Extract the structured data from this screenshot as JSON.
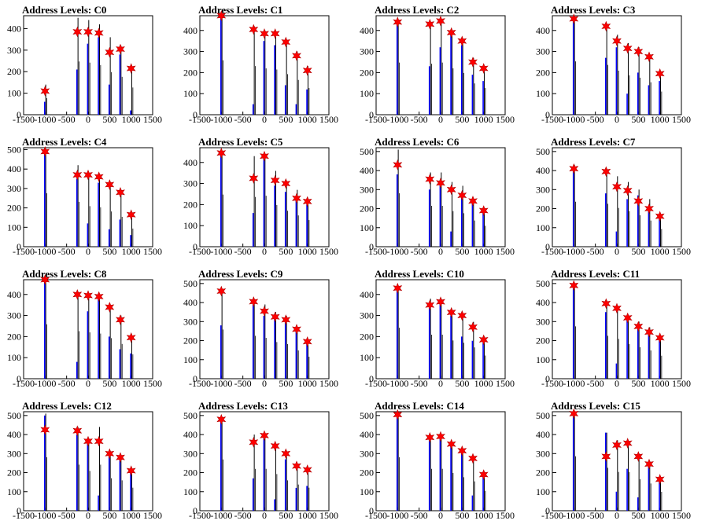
{
  "colors": {
    "histogram": "#0000ff",
    "overlay": "#000000",
    "marker_fill": "#ff0000",
    "marker_stroke": "#b00000"
  },
  "chart_data": [
    {
      "type": "bar",
      "title": "Address Levels: C0",
      "xlim": [
        -1500,
        1500
      ],
      "ylim": [
        0,
        460
      ],
      "xticks": [
        -1500,
        -1000,
        -500,
        0,
        500,
        1000,
        1500
      ],
      "yticks": [
        0,
        100,
        200,
        300,
        400
      ],
      "levels": [
        -1000,
        -250,
        0,
        250,
        500,
        750,
        1000
      ],
      "black_peaks": [
        140,
        450,
        440,
        420,
        360,
        320,
        230
      ],
      "blue_peaks": [
        60,
        210,
        330,
        360,
        140,
        280,
        20
      ],
      "markers": [
        {
          "x": -1000,
          "y": 110
        },
        {
          "x": -250,
          "y": 385
        },
        {
          "x": 0,
          "y": 385
        },
        {
          "x": 250,
          "y": 380
        },
        {
          "x": 500,
          "y": 290
        },
        {
          "x": 750,
          "y": 305
        },
        {
          "x": 1000,
          "y": 215
        }
      ]
    },
    {
      "type": "bar",
      "title": "Address Levels: C1",
      "xlim": [
        -1500,
        1500
      ],
      "ylim": [
        0,
        470
      ],
      "xticks": [
        -1500,
        -1000,
        -500,
        0,
        500,
        1000,
        1500
      ],
      "yticks": [
        0,
        100,
        200,
        300,
        400
      ],
      "levels": [
        -1000,
        -250,
        0,
        250,
        500,
        750,
        1000
      ],
      "black_peaks": [
        470,
        420,
        400,
        390,
        350,
        300,
        230
      ],
      "blue_peaks": [
        460,
        50,
        350,
        330,
        140,
        50,
        120
      ],
      "markers": [
        {
          "x": -1000,
          "y": 470
        },
        {
          "x": -250,
          "y": 405
        },
        {
          "x": 0,
          "y": 385
        },
        {
          "x": 250,
          "y": 385
        },
        {
          "x": 500,
          "y": 345
        },
        {
          "x": 750,
          "y": 280
        },
        {
          "x": 1000,
          "y": 210
        }
      ]
    },
    {
      "type": "bar",
      "title": "Address Levels: C2",
      "xlim": [
        -1500,
        1500
      ],
      "ylim": [
        0,
        470
      ],
      "xticks": [
        -1500,
        -1000,
        -500,
        0,
        500,
        1000,
        1500
      ],
      "yticks": [
        0,
        100,
        200,
        300,
        400
      ],
      "levels": [
        -1000,
        -250,
        0,
        250,
        500,
        750,
        1000
      ],
      "black_peaks": [
        450,
        440,
        450,
        400,
        360,
        270,
        230
      ],
      "blue_peaks": [
        440,
        230,
        320,
        380,
        330,
        190,
        160
      ],
      "markers": [
        {
          "x": -1000,
          "y": 440
        },
        {
          "x": -250,
          "y": 430
        },
        {
          "x": 0,
          "y": 445
        },
        {
          "x": 250,
          "y": 390
        },
        {
          "x": 500,
          "y": 350
        },
        {
          "x": 750,
          "y": 250
        },
        {
          "x": 1000,
          "y": 220
        }
      ]
    },
    {
      "type": "bar",
      "title": "Address Levels: C3",
      "xlim": [
        -1500,
        1500
      ],
      "ylim": [
        0,
        470
      ],
      "xticks": [
        -1500,
        -1000,
        -500,
        0,
        500,
        1000,
        1500
      ],
      "yticks": [
        0,
        100,
        200,
        300,
        400
      ],
      "levels": [
        -1000,
        -250,
        0,
        250,
        500,
        750,
        1000
      ],
      "black_peaks": [
        460,
        430,
        380,
        340,
        320,
        280,
        200
      ],
      "blue_peaks": [
        450,
        270,
        320,
        100,
        200,
        140,
        160
      ],
      "markers": [
        {
          "x": -1000,
          "y": 455
        },
        {
          "x": -250,
          "y": 420
        },
        {
          "x": 0,
          "y": 350
        },
        {
          "x": 250,
          "y": 315
        },
        {
          "x": 500,
          "y": 300
        },
        {
          "x": 750,
          "y": 275
        },
        {
          "x": 1000,
          "y": 195
        }
      ]
    },
    {
      "type": "bar",
      "title": "Address Levels: C4",
      "xlim": [
        -1500,
        1500
      ],
      "ylim": [
        0,
        510
      ],
      "xticks": [
        -1500,
        -1000,
        -500,
        0,
        500,
        1000,
        1500
      ],
      "yticks": [
        0,
        100,
        200,
        300,
        400,
        500
      ],
      "levels": [
        -1000,
        -250,
        0,
        250,
        500,
        750,
        1000
      ],
      "black_peaks": [
        500,
        420,
        380,
        370,
        330,
        280,
        170
      ],
      "blue_peaks": [
        490,
        350,
        120,
        330,
        90,
        140,
        60
      ],
      "markers": [
        {
          "x": -1000,
          "y": 490
        },
        {
          "x": -250,
          "y": 370
        },
        {
          "x": 0,
          "y": 370
        },
        {
          "x": 250,
          "y": 360
        },
        {
          "x": 500,
          "y": 320
        },
        {
          "x": 750,
          "y": 280
        },
        {
          "x": 1000,
          "y": 165
        }
      ]
    },
    {
      "type": "bar",
      "title": "Address Levels: C5",
      "xlim": [
        -1500,
        1500
      ],
      "ylim": [
        0,
        470
      ],
      "xticks": [
        -1500,
        -1000,
        -500,
        0,
        500,
        1000,
        1500
      ],
      "yticks": [
        0,
        100,
        200,
        300,
        400
      ],
      "levels": [
        -1000,
        -250,
        0,
        250,
        500,
        750,
        1000
      ],
      "black_peaks": [
        450,
        430,
        440,
        360,
        310,
        270,
        230
      ],
      "blue_peaks": [
        440,
        160,
        420,
        290,
        260,
        220,
        200
      ],
      "markers": [
        {
          "x": -1000,
          "y": 445
        },
        {
          "x": -250,
          "y": 325
        },
        {
          "x": 0,
          "y": 430
        },
        {
          "x": 250,
          "y": 315
        },
        {
          "x": 500,
          "y": 300
        },
        {
          "x": 750,
          "y": 230
        },
        {
          "x": 1000,
          "y": 215
        }
      ]
    },
    {
      "type": "bar",
      "title": "Address Levels: C6",
      "xlim": [
        -1500,
        1500
      ],
      "ylim": [
        0,
        520
      ],
      "xticks": [
        -1500,
        -1000,
        -500,
        0,
        500,
        1000,
        1500
      ],
      "yticks": [
        0,
        100,
        200,
        300,
        400,
        500
      ],
      "levels": [
        -1000,
        -250,
        0,
        250,
        500,
        750,
        1000
      ],
      "black_peaks": [
        510,
        390,
        390,
        340,
        320,
        250,
        200
      ],
      "blue_peaks": [
        380,
        300,
        320,
        80,
        270,
        230,
        180
      ],
      "markers": [
        {
          "x": -1000,
          "y": 430
        },
        {
          "x": -250,
          "y": 355
        },
        {
          "x": 0,
          "y": 335
        },
        {
          "x": 250,
          "y": 300
        },
        {
          "x": 500,
          "y": 270
        },
        {
          "x": 750,
          "y": 240
        },
        {
          "x": 1000,
          "y": 190
        }
      ]
    },
    {
      "type": "bar",
      "title": "Address Levels: C7",
      "xlim": [
        -1500,
        1500
      ],
      "ylim": [
        0,
        520
      ],
      "xticks": [
        -1500,
        -1000,
        -500,
        0,
        500,
        1000,
        1500
      ],
      "yticks": [
        0,
        100,
        200,
        300,
        400,
        500
      ],
      "levels": [
        -1000,
        -250,
        0,
        250,
        500,
        750,
        1000
      ],
      "black_peaks": [
        430,
        410,
        370,
        340,
        300,
        250,
        170
      ],
      "blue_peaks": [
        420,
        280,
        80,
        250,
        270,
        190,
        160
      ],
      "markers": [
        {
          "x": -1000,
          "y": 410
        },
        {
          "x": -250,
          "y": 395
        },
        {
          "x": 0,
          "y": 315
        },
        {
          "x": 250,
          "y": 295
        },
        {
          "x": 500,
          "y": 240
        },
        {
          "x": 750,
          "y": 200
        },
        {
          "x": 1000,
          "y": 160
        }
      ]
    },
    {
      "type": "bar",
      "title": "Address Levels: C8",
      "xlim": [
        -1500,
        1500
      ],
      "ylim": [
        0,
        470
      ],
      "xticks": [
        -1500,
        -1000,
        -500,
        0,
        500,
        1000,
        1500
      ],
      "yticks": [
        0,
        100,
        200,
        300,
        400
      ],
      "levels": [
        -1000,
        -250,
        0,
        250,
        500,
        750,
        1000
      ],
      "black_peaks": [
        470,
        410,
        400,
        390,
        350,
        300,
        210
      ],
      "blue_peaks": [
        460,
        80,
        320,
        380,
        200,
        140,
        120
      ],
      "markers": [
        {
          "x": -1000,
          "y": 470
        },
        {
          "x": -250,
          "y": 400
        },
        {
          "x": 0,
          "y": 395
        },
        {
          "x": 250,
          "y": 390
        },
        {
          "x": 500,
          "y": 340
        },
        {
          "x": 750,
          "y": 280
        },
        {
          "x": 1000,
          "y": 195
        }
      ]
    },
    {
      "type": "bar",
      "title": "Address Levels: C9",
      "xlim": [
        -1500,
        1500
      ],
      "ylim": [
        0,
        520
      ],
      "xticks": [
        -1500,
        -1000,
        -500,
        0,
        500,
        1000,
        1500
      ],
      "yticks": [
        0,
        100,
        200,
        300,
        400,
        500
      ],
      "levels": [
        -1000,
        -250,
        0,
        250,
        500,
        750,
        1000
      ],
      "black_peaks": [
        470,
        410,
        390,
        350,
        330,
        270,
        210
      ],
      "blue_peaks": [
        280,
        390,
        330,
        330,
        300,
        250,
        200
      ],
      "markers": [
        {
          "x": -1000,
          "y": 460
        },
        {
          "x": -250,
          "y": 405
        },
        {
          "x": 0,
          "y": 355
        },
        {
          "x": 250,
          "y": 325
        },
        {
          "x": 500,
          "y": 310
        },
        {
          "x": 750,
          "y": 260
        },
        {
          "x": 1000,
          "y": 195
        }
      ]
    },
    {
      "type": "bar",
      "title": "Address Levels: C10",
      "xlim": [
        -1500,
        1500
      ],
      "ylim": [
        0,
        470
      ],
      "xticks": [
        -1500,
        -1000,
        -500,
        0,
        500,
        1000,
        1500
      ],
      "yticks": [
        0,
        100,
        200,
        300,
        400
      ],
      "levels": [
        -1000,
        -250,
        0,
        250,
        500,
        750,
        1000
      ],
      "black_peaks": [
        440,
        380,
        380,
        330,
        310,
        270,
        200
      ],
      "blue_peaks": [
        430,
        340,
        360,
        300,
        200,
        180,
        170
      ],
      "markers": [
        {
          "x": -1000,
          "y": 430
        },
        {
          "x": -250,
          "y": 350
        },
        {
          "x": 0,
          "y": 365
        },
        {
          "x": 250,
          "y": 315
        },
        {
          "x": 500,
          "y": 300
        },
        {
          "x": 750,
          "y": 245
        },
        {
          "x": 1000,
          "y": 185
        }
      ]
    },
    {
      "type": "bar",
      "title": "Address Levels: C11",
      "xlim": [
        -1500,
        1500
      ],
      "ylim": [
        0,
        520
      ],
      "xticks": [
        -1500,
        -1000,
        -500,
        0,
        500,
        1000,
        1500
      ],
      "yticks": [
        0,
        100,
        200,
        300,
        400,
        500
      ],
      "levels": [
        -1000,
        -250,
        0,
        250,
        500,
        750,
        1000
      ],
      "black_peaks": [
        500,
        410,
        380,
        330,
        300,
        270,
        220
      ],
      "blue_peaks": [
        490,
        350,
        80,
        320,
        280,
        240,
        210
      ],
      "markers": [
        {
          "x": -1000,
          "y": 490
        },
        {
          "x": -250,
          "y": 395
        },
        {
          "x": 0,
          "y": 370
        },
        {
          "x": 250,
          "y": 320
        },
        {
          "x": 500,
          "y": 275
        },
        {
          "x": 750,
          "y": 245
        },
        {
          "x": 1000,
          "y": 215
        }
      ]
    },
    {
      "type": "bar",
      "title": "Address Levels: C12",
      "xlim": [
        -1500,
        1500
      ],
      "ylim": [
        0,
        520
      ],
      "xticks": [
        -1500,
        -1000,
        -500,
        0,
        500,
        1000,
        1500
      ],
      "yticks": [
        0,
        100,
        200,
        300,
        400,
        500
      ],
      "levels": [
        -1000,
        -250,
        0,
        250,
        500,
        750,
        1000
      ],
      "black_peaks": [
        510,
        440,
        380,
        440,
        310,
        290,
        220
      ],
      "blue_peaks": [
        500,
        400,
        360,
        80,
        290,
        270,
        200
      ],
      "markers": [
        {
          "x": -1000,
          "y": 425
        },
        {
          "x": -250,
          "y": 420
        },
        {
          "x": 0,
          "y": 365
        },
        {
          "x": 250,
          "y": 365
        },
        {
          "x": 500,
          "y": 300
        },
        {
          "x": 750,
          "y": 280
        },
        {
          "x": 1000,
          "y": 210
        }
      ]
    },
    {
      "type": "bar",
      "title": "Address Levels: C13",
      "xlim": [
        -1500,
        1500
      ],
      "ylim": [
        0,
        520
      ],
      "xticks": [
        -1500,
        -1000,
        -500,
        0,
        500,
        1000,
        1500
      ],
      "yticks": [
        0,
        100,
        200,
        300,
        400,
        500
      ],
      "levels": [
        -1000,
        -250,
        0,
        250,
        500,
        750,
        1000
      ],
      "black_peaks": [
        490,
        400,
        400,
        350,
        290,
        250,
        220
      ],
      "blue_peaks": [
        480,
        170,
        380,
        60,
        270,
        120,
        130
      ],
      "markers": [
        {
          "x": -1000,
          "y": 480
        },
        {
          "x": -250,
          "y": 360
        },
        {
          "x": 0,
          "y": 395
        },
        {
          "x": 250,
          "y": 340
        },
        {
          "x": 500,
          "y": 300
        },
        {
          "x": 750,
          "y": 235
        },
        {
          "x": 1000,
          "y": 215
        }
      ]
    },
    {
      "type": "bar",
      "title": "Address Levels: C14",
      "xlim": [
        -1500,
        1500
      ],
      "ylim": [
        0,
        520
      ],
      "xticks": [
        -1500,
        -1000,
        -500,
        0,
        500,
        1000,
        1500
      ],
      "yticks": [
        0,
        100,
        200,
        300,
        400,
        500
      ],
      "levels": [
        -1000,
        -250,
        0,
        250,
        500,
        750,
        1000
      ],
      "black_peaks": [
        510,
        400,
        400,
        360,
        320,
        280,
        190
      ],
      "blue_peaks": [
        500,
        380,
        380,
        340,
        300,
        80,
        180
      ],
      "markers": [
        {
          "x": -1000,
          "y": 505
        },
        {
          "x": -250,
          "y": 385
        },
        {
          "x": 0,
          "y": 390
        },
        {
          "x": 250,
          "y": 350
        },
        {
          "x": 500,
          "y": 315
        },
        {
          "x": 750,
          "y": 275
        },
        {
          "x": 1000,
          "y": 190
        }
      ]
    },
    {
      "type": "bar",
      "title": "Address Levels: C15",
      "xlim": [
        -1500,
        1500
      ],
      "ylim": [
        0,
        520
      ],
      "xticks": [
        -1500,
        -1000,
        -500,
        0,
        500,
        1000,
        1500
      ],
      "yticks": [
        0,
        100,
        200,
        300,
        400,
        500
      ],
      "levels": [
        -1000,
        -250,
        0,
        250,
        500,
        750,
        1000
      ],
      "black_peaks": [
        520,
        410,
        370,
        370,
        300,
        260,
        180
      ],
      "blue_peaks": [
        510,
        410,
        100,
        220,
        70,
        240,
        170
      ],
      "markers": [
        {
          "x": -1000,
          "y": 510
        },
        {
          "x": -250,
          "y": 285
        },
        {
          "x": 0,
          "y": 345
        },
        {
          "x": 250,
          "y": 355
        },
        {
          "x": 500,
          "y": 285
        },
        {
          "x": 750,
          "y": 245
        },
        {
          "x": 1000,
          "y": 165
        }
      ]
    }
  ]
}
